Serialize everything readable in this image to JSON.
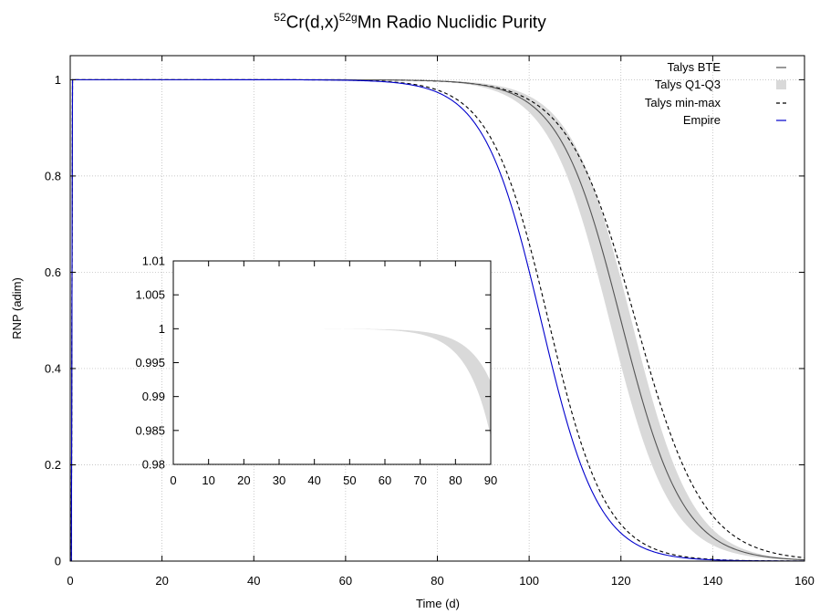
{
  "chart_data": [
    {
      "type": "line",
      "title": {
        "sup1": "52",
        "part1": "Cr(d,x)",
        "sup2": "52g",
        "part2": "Mn Radio Nuclidic Purity"
      },
      "xlabel": "Time (d)",
      "ylabel": "RNP (adim)",
      "xlim": [
        0,
        160
      ],
      "ylim": [
        0,
        1.05
      ],
      "xticks": [
        0,
        20,
        40,
        60,
        80,
        100,
        120,
        140,
        160
      ],
      "yticks": [
        0,
        0.2,
        0.4,
        0.6,
        0.8,
        1
      ],
      "grid": true,
      "legend_position": "top-right",
      "legend": [
        "Talys BTE",
        "Talys Q1-Q3",
        "Talys min-max",
        "Empire"
      ],
      "series": [
        {
          "name": "Talys BTE",
          "style": "solid",
          "color": "#555555",
          "t50": 120.0,
          "k": 0.148
        },
        {
          "name": "Talys Q1-Q3",
          "style": "band",
          "color": "#d9d9d9",
          "t50_low": 117.5,
          "t50_high": 122.3,
          "k": 0.15
        },
        {
          "name": "Talys min-max",
          "style": "dashed",
          "color": "#000000",
          "t50_min": 104.2,
          "t50_max": 123.2,
          "k_min": 0.158,
          "k_max": 0.135
        },
        {
          "name": "Empire",
          "style": "solid",
          "color": "#0000cc",
          "t50": 102.6,
          "k": 0.16
        }
      ]
    },
    {
      "type": "line",
      "inset": true,
      "xlim": [
        0,
        90
      ],
      "ylim": [
        0.98,
        1.01
      ],
      "xticks": [
        0,
        10,
        20,
        30,
        40,
        50,
        60,
        70,
        80,
        90
      ],
      "yticks": [
        "0.98",
        "0.985",
        "0.99",
        "0.995",
        "1",
        "1.005",
        "1.01"
      ],
      "grid": false
    }
  ],
  "colors": {
    "band": "#d9d9d9",
    "talys": "#555555",
    "empire": "#0000cc",
    "dashed": "#000000"
  }
}
